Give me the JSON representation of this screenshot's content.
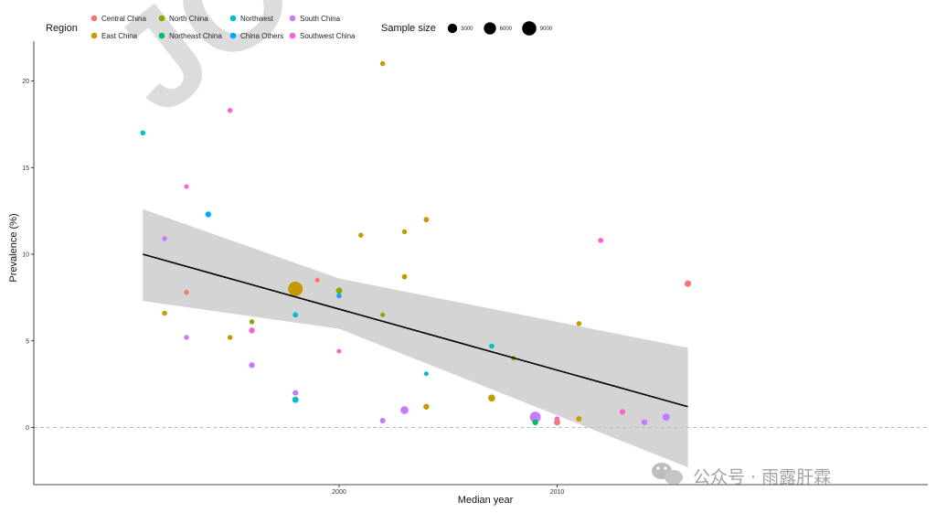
{
  "chart_data": {
    "type": "scatter",
    "xlabel": "Median year",
    "ylabel": "Prevalence (%)",
    "xlim": [
      1986,
      2027
    ],
    "ylim": [
      -3.3,
      22.3
    ],
    "x_ticks": [
      {
        "value": 2000,
        "label": "2000"
      },
      {
        "value": 2010,
        "label": "2010"
      }
    ],
    "y_ticks": [
      {
        "value": 0,
        "label": "0"
      },
      {
        "value": 5,
        "label": "5"
      },
      {
        "value": 10,
        "label": "10"
      },
      {
        "value": 15,
        "label": "15"
      },
      {
        "value": 20,
        "label": "20"
      }
    ],
    "reference_line_y": 0,
    "grid": false,
    "legend_region": {
      "title": "Region",
      "entries": [
        {
          "name": "Central China",
          "color": "#F8766D"
        },
        {
          "name": "East China",
          "color": "#C49A00"
        },
        {
          "name": "North China",
          "color": "#7CAE00"
        },
        {
          "name": "Northeast China",
          "color": "#00BE67"
        },
        {
          "name": "Northwest",
          "color": "#00BFC4"
        },
        {
          "name": "China Others",
          "color": "#00A9FF"
        },
        {
          "name": "South China",
          "color": "#C77CFF"
        },
        {
          "name": "Southwest China",
          "color": "#FF61CC"
        }
      ]
    },
    "legend_size": {
      "title": "Sample size",
      "entries": [
        {
          "value": 3000,
          "label": "3000"
        },
        {
          "value": 6000,
          "label": "6000"
        },
        {
          "value": 9000,
          "label": "9000"
        }
      ]
    },
    "trend_line": {
      "x": [
        1991,
        2016
      ],
      "y": [
        10.0,
        1.2
      ]
    },
    "confidence_band": {
      "x": [
        1991,
        2000,
        2016
      ],
      "upper": [
        12.6,
        8.6,
        4.6
      ],
      "lower": [
        7.3,
        5.7,
        -2.3
      ]
    },
    "points": [
      {
        "region": "Northwest",
        "x": 1991,
        "y": 17.0,
        "n": 300
      },
      {
        "region": "East China",
        "x": 1992,
        "y": 6.6,
        "n": 300
      },
      {
        "region": "South China",
        "x": 1992,
        "y": 10.9,
        "n": 300
      },
      {
        "region": "Southwest China",
        "x": 1993,
        "y": 13.9,
        "n": 200
      },
      {
        "region": "Central China",
        "x": 1993,
        "y": 7.8,
        "n": 300
      },
      {
        "region": "South China",
        "x": 1993,
        "y": 5.2,
        "n": 300
      },
      {
        "region": "China Others",
        "x": 1994,
        "y": 12.3,
        "n": 600
      },
      {
        "region": "Southwest China",
        "x": 1995,
        "y": 18.3,
        "n": 300
      },
      {
        "region": "East China",
        "x": 1995,
        "y": 5.2,
        "n": 300
      },
      {
        "region": "North China",
        "x": 1996,
        "y": 6.1,
        "n": 300
      },
      {
        "region": "Southwest China",
        "x": 1996,
        "y": 5.6,
        "n": 600
      },
      {
        "region": "South China",
        "x": 1996,
        "y": 3.6,
        "n": 600
      },
      {
        "region": "East China",
        "x": 1998,
        "y": 8.0,
        "n": 9500
      },
      {
        "region": "Northwest",
        "x": 1998,
        "y": 6.5,
        "n": 400
      },
      {
        "region": "South China",
        "x": 1998,
        "y": 2.0,
        "n": 500
      },
      {
        "region": "Northwest",
        "x": 1998,
        "y": 1.6,
        "n": 800
      },
      {
        "region": "Central China",
        "x": 1999,
        "y": 8.5,
        "n": 200
      },
      {
        "region": "North China",
        "x": 2000,
        "y": 7.9,
        "n": 800
      },
      {
        "region": "China Others",
        "x": 2000,
        "y": 7.6,
        "n": 300
      },
      {
        "region": "Southwest China",
        "x": 2000,
        "y": 4.4,
        "n": 200
      },
      {
        "region": "East China",
        "x": 2001,
        "y": 11.1,
        "n": 300
      },
      {
        "region": "East China",
        "x": 2002,
        "y": 21.0,
        "n": 300
      },
      {
        "region": "North China",
        "x": 2002,
        "y": 6.5,
        "n": 200
      },
      {
        "region": "South China",
        "x": 2002,
        "y": 0.4,
        "n": 500
      },
      {
        "region": "East China",
        "x": 2003,
        "y": 11.3,
        "n": 300
      },
      {
        "region": "East China",
        "x": 2003,
        "y": 8.7,
        "n": 400
      },
      {
        "region": "South China",
        "x": 2003,
        "y": 1.0,
        "n": 1800
      },
      {
        "region": "East China",
        "x": 2004,
        "y": 12.0,
        "n": 400
      },
      {
        "region": "Northwest",
        "x": 2004,
        "y": 3.1,
        "n": 200
      },
      {
        "region": "East China",
        "x": 2004,
        "y": 1.2,
        "n": 600
      },
      {
        "region": "Northwest",
        "x": 2007,
        "y": 4.7,
        "n": 300
      },
      {
        "region": "East China",
        "x": 2007,
        "y": 1.7,
        "n": 1200
      },
      {
        "region": "North China",
        "x": 2008,
        "y": 4.0,
        "n": 200
      },
      {
        "region": "South China",
        "x": 2009,
        "y": 0.6,
        "n": 4500
      },
      {
        "region": "Northeast China",
        "x": 2009,
        "y": 0.3,
        "n": 600
      },
      {
        "region": "Central China",
        "x": 2010,
        "y": 0.3,
        "n": 800
      },
      {
        "region": "Southwest China",
        "x": 2010,
        "y": 0.5,
        "n": 300
      },
      {
        "region": "East China",
        "x": 2011,
        "y": 6.0,
        "n": 300
      },
      {
        "region": "East China",
        "x": 2011,
        "y": 0.5,
        "n": 400
      },
      {
        "region": "Southwest China",
        "x": 2012,
        "y": 10.8,
        "n": 400
      },
      {
        "region": "Southwest China",
        "x": 2013,
        "y": 0.9,
        "n": 500
      },
      {
        "region": "South China",
        "x": 2014,
        "y": 0.3,
        "n": 600
      },
      {
        "region": "South China",
        "x": 2015,
        "y": 0.6,
        "n": 1500
      },
      {
        "region": "Central China",
        "x": 2016,
        "y": 8.3,
        "n": 900
      }
    ]
  },
  "watermark": {
    "text": "公众号 · 雨露肝霖",
    "icon": "wechat-icon",
    "bg_text": "JO"
  }
}
